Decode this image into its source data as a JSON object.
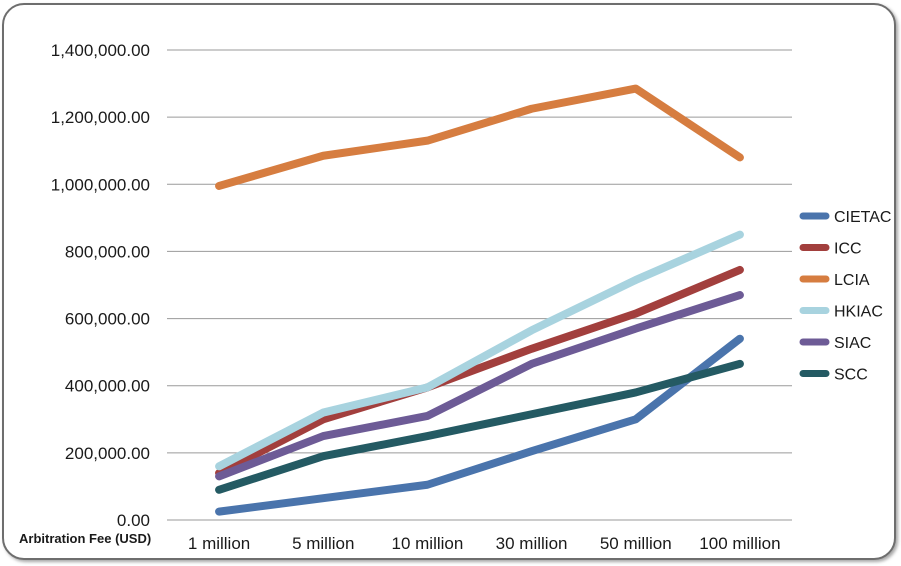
{
  "chart_data": {
    "type": "line",
    "title": "",
    "xlabel": "Arbitration Fee (USD)",
    "ylabel": "",
    "categories": [
      "1 million",
      "5 million",
      "10 million",
      "30 million",
      "50 million",
      "100 million"
    ],
    "ylim": [
      0,
      1400000
    ],
    "yticks": [
      0,
      200000,
      400000,
      600000,
      800000,
      1000000,
      1200000,
      1400000
    ],
    "ytick_labels": [
      "0.00",
      "200,000.00",
      "400,000.00",
      "600,000.00",
      "800,000.00",
      "1,000,000.00",
      "1,200,000.00",
      "1,400,000.00"
    ],
    "grid": true,
    "legend_position": "right",
    "series": [
      {
        "name": "CIETAC",
        "color": "#4a74ac",
        "values": [
          25000,
          65000,
          105000,
          205000,
          300000,
          540000
        ]
      },
      {
        "name": "ICC",
        "color": "#a23f3d",
        "values": [
          140000,
          300000,
          395000,
          510000,
          615000,
          745000
        ]
      },
      {
        "name": "LCIA",
        "color": "#d67d40",
        "values": [
          995000,
          1085000,
          1130000,
          1225000,
          1285000,
          1080000
        ]
      },
      {
        "name": "HKIAC",
        "color": "#a8d3df",
        "values": [
          160000,
          320000,
          395000,
          565000,
          715000,
          850000
        ]
      },
      {
        "name": "SIAC",
        "color": "#6d5b96",
        "values": [
          130000,
          250000,
          310000,
          465000,
          570000,
          670000
        ]
      },
      {
        "name": "SCC",
        "color": "#245a63",
        "values": [
          90000,
          190000,
          250000,
          315000,
          380000,
          465000
        ]
      }
    ]
  }
}
